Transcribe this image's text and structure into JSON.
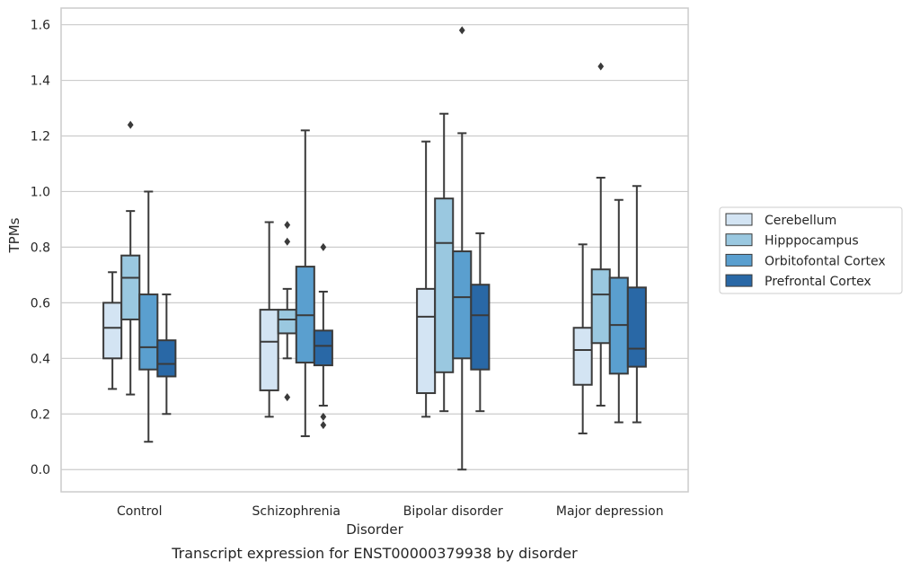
{
  "chart_data": {
    "type": "boxplot",
    "title": "",
    "caption": "Transcript expression for ENST00000379938 by disorder",
    "xlabel": "Disorder",
    "ylabel": "TPMs",
    "ylim": [
      -0.08,
      1.66
    ],
    "yticks": [
      0.0,
      0.2,
      0.4,
      0.6,
      0.8,
      1.0,
      1.2,
      1.4,
      1.6
    ],
    "ytick_labels": [
      "0.0",
      "0.2",
      "0.4",
      "0.6",
      "0.8",
      "1.0",
      "1.2",
      "1.4",
      "1.6"
    ],
    "grid": "horizontal",
    "legend_position": "right",
    "categories": [
      "Control",
      "Schizophrenia",
      "Bipolar disorder",
      "Major depression"
    ],
    "series": [
      {
        "name": "Cerebellum",
        "color": "#d3e4f3",
        "boxes": [
          {
            "whislo": 0.29,
            "q1": 0.4,
            "med": 0.51,
            "q3": 0.6,
            "whishi": 0.71,
            "fliers": []
          },
          {
            "whislo": 0.19,
            "q1": 0.285,
            "med": 0.46,
            "q3": 0.575,
            "whishi": 0.89,
            "fliers": []
          },
          {
            "whislo": 0.19,
            "q1": 0.275,
            "med": 0.55,
            "q3": 0.65,
            "whishi": 1.18,
            "fliers": []
          },
          {
            "whislo": 0.13,
            "q1": 0.305,
            "med": 0.43,
            "q3": 0.51,
            "whishi": 0.81,
            "fliers": []
          }
        ]
      },
      {
        "name": "Hipppocampus",
        "color": "#9ac8e0",
        "boxes": [
          {
            "whislo": 0.27,
            "q1": 0.54,
            "med": 0.69,
            "q3": 0.77,
            "whishi": 0.93,
            "fliers": [
              1.24
            ]
          },
          {
            "whislo": 0.4,
            "q1": 0.49,
            "med": 0.54,
            "q3": 0.575,
            "whishi": 0.65,
            "fliers": [
              0.26,
              0.82,
              0.88
            ]
          },
          {
            "whislo": 0.21,
            "q1": 0.35,
            "med": 0.815,
            "q3": 0.975,
            "whishi": 1.28,
            "fliers": []
          },
          {
            "whislo": 0.23,
            "q1": 0.455,
            "med": 0.63,
            "q3": 0.72,
            "whishi": 1.05,
            "fliers": [
              1.45
            ]
          }
        ]
      },
      {
        "name": "Orbitofontal Cortex",
        "color": "#5a9fcf",
        "boxes": [
          {
            "whislo": 0.1,
            "q1": 0.36,
            "med": 0.44,
            "q3": 0.63,
            "whishi": 1.0,
            "fliers": []
          },
          {
            "whislo": 0.12,
            "q1": 0.385,
            "med": 0.555,
            "q3": 0.73,
            "whishi": 1.22,
            "fliers": []
          },
          {
            "whislo": 0.0,
            "q1": 0.4,
            "med": 0.62,
            "q3": 0.785,
            "whishi": 1.21,
            "fliers": [
              1.58
            ]
          },
          {
            "whislo": 0.17,
            "q1": 0.345,
            "med": 0.52,
            "q3": 0.69,
            "whishi": 0.97,
            "fliers": []
          }
        ]
      },
      {
        "name": "Prefrontal Cortex",
        "color": "#2968a6",
        "boxes": [
          {
            "whislo": 0.2,
            "q1": 0.335,
            "med": 0.38,
            "q3": 0.465,
            "whishi": 0.63,
            "fliers": []
          },
          {
            "whislo": 0.23,
            "q1": 0.375,
            "med": 0.445,
            "q3": 0.5,
            "whishi": 0.64,
            "fliers": [
              0.16,
              0.19,
              0.8
            ]
          },
          {
            "whislo": 0.21,
            "q1": 0.36,
            "med": 0.555,
            "q3": 0.665,
            "whishi": 0.85,
            "fliers": []
          },
          {
            "whislo": 0.17,
            "q1": 0.37,
            "med": 0.435,
            "q3": 0.655,
            "whishi": 1.02,
            "fliers": []
          }
        ]
      }
    ]
  }
}
